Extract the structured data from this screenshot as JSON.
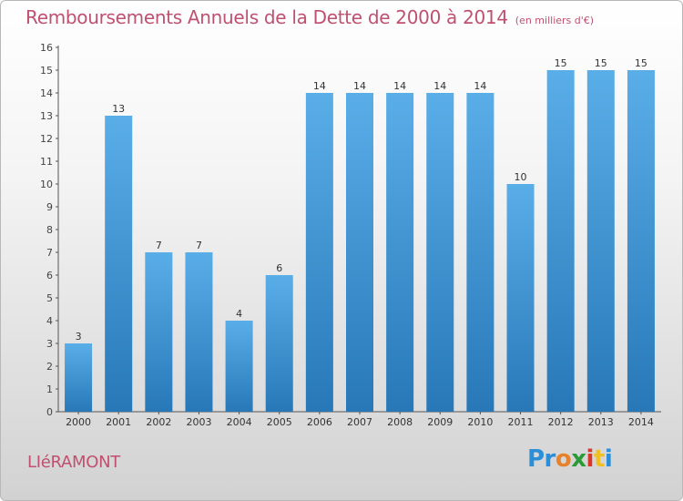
{
  "chart_data": {
    "type": "bar",
    "title": "Remboursements Annuels de la Dette de 2000 à 2014",
    "subtitle": "(en milliers d'€)",
    "categories": [
      "2000",
      "2001",
      "2002",
      "2003",
      "2004",
      "2005",
      "2006",
      "2007",
      "2008",
      "2009",
      "2010",
      "2011",
      "2012",
      "2013",
      "2014"
    ],
    "values": [
      3,
      13,
      7,
      7,
      4,
      6,
      14,
      14,
      14,
      14,
      14,
      10,
      15,
      15,
      15
    ],
    "ylim": [
      0,
      16
    ],
    "yticks": [
      0,
      1,
      2,
      3,
      4,
      5,
      6,
      7,
      8,
      9,
      10,
      11,
      12,
      13,
      14,
      15,
      16
    ],
    "grid": false,
    "colors": {
      "bar_top": "#5aaee8",
      "bar_bottom": "#2878b8",
      "title": "#c05070"
    }
  },
  "footer": {
    "commune": "LIéRAMONT",
    "logo": [
      "Pr",
      "o",
      "x",
      "i",
      "t",
      "i"
    ]
  }
}
